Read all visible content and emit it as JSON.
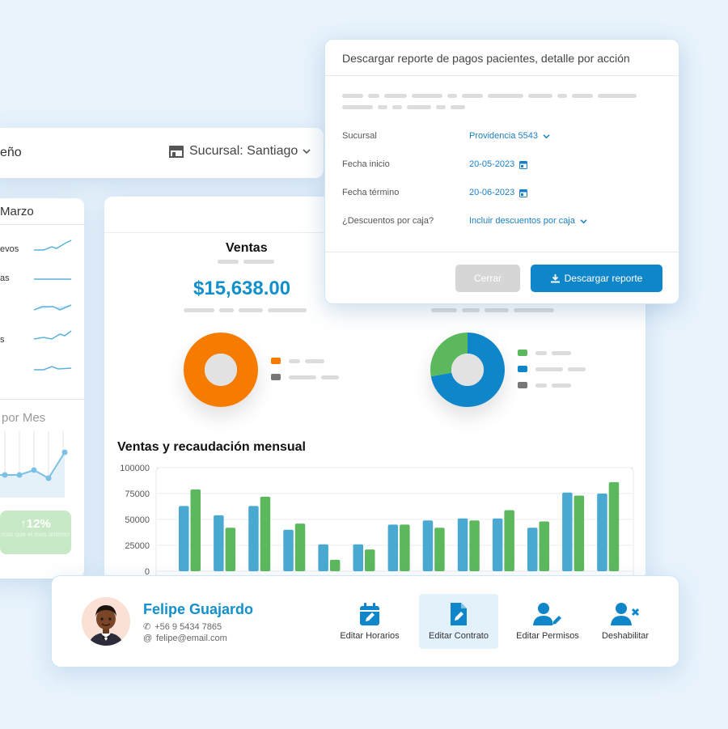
{
  "header": {
    "title_partial": "eño",
    "branch_label": "Sucursal: Santiago"
  },
  "left_card": {
    "month": "Marzo",
    "items": [
      "evos",
      "as",
      "",
      "s",
      ""
    ],
    "chart_title": "por Mes",
    "growth_value": "12%",
    "growth_caption": "más que el mes anterior"
  },
  "main": {
    "ventas_title": "Ventas",
    "ventas_amount": "$15,638.00"
  },
  "colors": {
    "accent_blue": "#1190cc",
    "orange": "#f57c00",
    "green": "#5cb85c",
    "bar_blue": "#4aa9d1",
    "grey": "#777777"
  },
  "chart_data": {
    "type": "bar",
    "title": "Ventas y recaudación mensual",
    "ylim": [
      0,
      100000
    ],
    "yticks": [
      "100000",
      "75000",
      "50000",
      "25000",
      "0"
    ],
    "series": [
      {
        "name": "blue",
        "values": [
          63000,
          54000,
          63000,
          40000,
          26000,
          26000,
          45000,
          49000,
          51000,
          51000,
          42000,
          76000,
          75000
        ]
      },
      {
        "name": "green",
        "values": [
          79000,
          42000,
          72000,
          46000,
          11000,
          21000,
          45000,
          42000,
          49000,
          59000,
          48000,
          73000,
          86000
        ]
      }
    ]
  },
  "donuts": [
    {
      "name": "left-donut",
      "slices": [
        1.0
      ],
      "colors": [
        "#f57c00"
      ]
    },
    {
      "name": "right-donut",
      "slices": [
        0.72,
        0.28
      ],
      "colors": [
        "#0f86c9",
        "#5cb85c"
      ]
    }
  ],
  "modal": {
    "title": "Descargar reporte de pagos pacientes, detalle por acción",
    "fields": [
      {
        "label": "Sucursal",
        "value": "Providencia 5543",
        "icon": "chevron-down"
      },
      {
        "label": "Fecha inicio",
        "value": "20-05-2023",
        "icon": "calendar"
      },
      {
        "label": "Fecha término",
        "value": "20-06-2023",
        "icon": "calendar"
      },
      {
        "label": "¿Descuentos por caja?",
        "value": "Incluir descuentos por caja",
        "icon": "chevron-down"
      }
    ],
    "close_label": "Cerrar",
    "download_label": "Descargar reporte"
  },
  "user": {
    "name": "Felipe Guajardo",
    "phone": "+56 9 5434 7865",
    "email": "felipe@email.com",
    "actions": [
      {
        "label": "Editar Horarios",
        "icon": "calendar-edit-icon"
      },
      {
        "label": "Editar Contrato",
        "icon": "document-edit-icon"
      },
      {
        "label": "Editar Permisos",
        "icon": "user-edit-icon"
      },
      {
        "label": "Deshabilitar",
        "icon": "user-remove-icon"
      }
    ]
  }
}
